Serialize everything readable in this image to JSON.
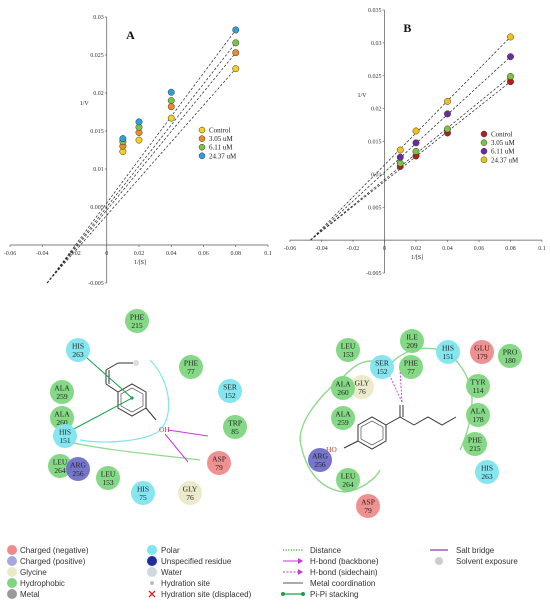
{
  "chart_data": [
    {
      "type": "line",
      "panel_label": "A",
      "ylabel": "1/V",
      "xlabel": "1/[S]",
      "xlim": [
        -0.06,
        0.1
      ],
      "ylim": [
        -0.005,
        0.03
      ],
      "x_ticks": [
        "-0.06",
        "-0.04",
        "-0.02",
        "0",
        "0.02",
        "0.04",
        "0.06",
        "0.08",
        "0.1"
      ],
      "y_ticks": [
        "0.03",
        "0.025",
        "0.02",
        "0.015",
        "0.01",
        "0.005",
        "-0.005"
      ],
      "legend_position": "right",
      "series": [
        {
          "name": "Control",
          "color": "#f2d21b",
          "x": [
            0.01,
            0.02,
            0.04,
            0.08
          ],
          "y": [
            0.0123,
            0.0138,
            0.0167,
            0.0232
          ]
        },
        {
          "name": "3.05 uM",
          "color": "#f08a24",
          "x": [
            0.01,
            0.02,
            0.04,
            0.08
          ],
          "y": [
            0.013,
            0.0148,
            0.0182,
            0.0253
          ]
        },
        {
          "name": "6.11 uM",
          "color": "#7cc243",
          "x": [
            0.01,
            0.02,
            0.04,
            0.08
          ],
          "y": [
            0.0136,
            0.0155,
            0.019,
            0.0266
          ]
        },
        {
          "name": "24.37 uM",
          "color": "#2b9fe0",
          "x": [
            0.01,
            0.02,
            0.04,
            0.08
          ],
          "y": [
            0.014,
            0.0162,
            0.0201,
            0.0283
          ]
        }
      ],
      "fit_lines": {
        "x_start": -0.037,
        "y_start": -0.005
      }
    },
    {
      "type": "line",
      "panel_label": "B",
      "ylabel": "1/V",
      "xlabel": "1/[S]",
      "xlim": [
        -0.06,
        0.1
      ],
      "ylim": [
        -0.005,
        0.035
      ],
      "x_ticks": [
        "-0.06",
        "-0.04",
        "-0.02",
        "0",
        "0.02",
        "0.04",
        "0.06",
        "0.08",
        "0.1"
      ],
      "y_ticks": [
        "0.035",
        "0.03",
        "0.025",
        "0.02",
        "0.015",
        "0.01",
        "0.005",
        "-0.005"
      ],
      "legend_position": "right",
      "series": [
        {
          "name": "Control",
          "color": "#b51d1d",
          "x": [
            0.01,
            0.02,
            0.04,
            0.08
          ],
          "y": [
            0.0112,
            0.0128,
            0.0163,
            0.0241
          ]
        },
        {
          "name": "3.05 uM",
          "color": "#7cc243",
          "x": [
            0.01,
            0.02,
            0.04,
            0.08
          ],
          "y": [
            0.0117,
            0.0135,
            0.0169,
            0.0249
          ]
        },
        {
          "name": "6.11 uM",
          "color": "#6a2aa0",
          "x": [
            0.01,
            0.02,
            0.04,
            0.08
          ],
          "y": [
            0.0126,
            0.0148,
            0.0192,
            0.0279
          ]
        },
        {
          "name": "24.37 uM",
          "color": "#f2c21b",
          "x": [
            0.01,
            0.02,
            0.04,
            0.08
          ],
          "y": [
            0.0137,
            0.0166,
            0.0211,
            0.0309
          ]
        }
      ],
      "fit_lines": {
        "x_start": -0.047,
        "y_start": 0.0
      }
    }
  ],
  "interaction_diagrams": {
    "left": {
      "residues": [
        {
          "name": "PHE",
          "num": "215",
          "color": "#7ed67e"
        },
        {
          "name": "HIS",
          "num": "263",
          "color": "#7fe5ef"
        },
        {
          "name": "PHE",
          "num": "77",
          "color": "#7ed67e"
        },
        {
          "name": "SER",
          "num": "152",
          "color": "#7fe5ef"
        },
        {
          "name": "ALA",
          "num": "259",
          "color": "#7ed67e"
        },
        {
          "name": "ALA",
          "num": "260",
          "color": "#7ed67e"
        },
        {
          "name": "HIS",
          "num": "151",
          "color": "#7fe5ef"
        },
        {
          "name": "TRP",
          "num": "85",
          "color": "#7ed67e"
        },
        {
          "name": "LEU",
          "num": "264",
          "color": "#7ed67e"
        },
        {
          "name": "ARG",
          "num": "256",
          "color": "#6f6fc9"
        },
        {
          "name": "ASP",
          "num": "79",
          "color": "#f08a8a"
        },
        {
          "name": "LEU",
          "num": "153",
          "color": "#7ed67e"
        },
        {
          "name": "HIS",
          "num": "75",
          "color": "#7fe5ef"
        },
        {
          "name": "GLY",
          "num": "76",
          "color": "#ece9c9"
        }
      ],
      "ligand_label": "OH"
    },
    "right": {
      "residues": [
        {
          "name": "LEU",
          "num": "153",
          "color": "#7ed67e"
        },
        {
          "name": "ILE",
          "num": "209",
          "color": "#7ed67e"
        },
        {
          "name": "SER",
          "num": "152",
          "color": "#7fe5ef"
        },
        {
          "name": "PHE",
          "num": "77",
          "color": "#7ed67e"
        },
        {
          "name": "HIS",
          "num": "151",
          "color": "#7fe5ef"
        },
        {
          "name": "GLU",
          "num": "179",
          "color": "#f08a8a"
        },
        {
          "name": "PRO",
          "num": "180",
          "color": "#7ed67e"
        },
        {
          "name": "GLY",
          "num": "76",
          "color": "#ece9c9"
        },
        {
          "name": "ALA",
          "num": "260",
          "color": "#7ed67e"
        },
        {
          "name": "TYR",
          "num": "114",
          "color": "#7ed67e"
        },
        {
          "name": "ALA",
          "num": "259",
          "color": "#7ed67e"
        },
        {
          "name": "ALA",
          "num": "178",
          "color": "#7ed67e"
        },
        {
          "name": "ARG",
          "num": "256",
          "color": "#6f6fc9"
        },
        {
          "name": "PHE",
          "num": "215",
          "color": "#7ed67e"
        },
        {
          "name": "HIS",
          "num": "263",
          "color": "#7fe5ef"
        },
        {
          "name": "LEU",
          "num": "264",
          "color": "#7ed67e"
        },
        {
          "name": "ASP",
          "num": "79",
          "color": "#f08a8a"
        }
      ],
      "ligand_label": "HO"
    }
  },
  "legend_key": {
    "col1": [
      {
        "label": "Charged (negative)",
        "color": "#f08a8a"
      },
      {
        "label": "Charged (positive)",
        "color": "#a7a7e0"
      },
      {
        "label": "Glycine",
        "color": "#ece9c9"
      },
      {
        "label": "Hydrophobic",
        "color": "#7ed67e"
      },
      {
        "label": "Metal",
        "color": "#9a9a9a"
      }
    ],
    "col2": [
      {
        "label": "Polar",
        "color": "#7fe5ef",
        "marker": "circle"
      },
      {
        "label": "Unspecified residue",
        "color": "#1d2f9a",
        "marker": "circle"
      },
      {
        "label": "Water",
        "color": "#cfd8dd",
        "marker": "circle"
      },
      {
        "label": "Hydration site",
        "color": "#bbbbbb",
        "marker": "dot"
      },
      {
        "label": "Hydration site (displaced)",
        "color": "#d22",
        "marker": "cross"
      }
    ],
    "col3": [
      {
        "label": "Distance",
        "color": "#2db62d",
        "style": "dotted"
      },
      {
        "label": "H-bond (backbone)",
        "color": "#c43bd6",
        "style": "arrow"
      },
      {
        "label": "H-bond (sidechain)",
        "color": "#c43bd6",
        "style": "arrow-dash"
      },
      {
        "label": "Metal coordination",
        "color": "#555555",
        "style": "line"
      },
      {
        "label": "Pi-Pi stacking",
        "color": "#17a24a",
        "style": "dots"
      }
    ],
    "col4": [
      {
        "label": "Salt bridge",
        "color": "#8a3fb0",
        "style": "line"
      },
      {
        "label": "Solvent exposure",
        "color": "#cccccc",
        "style": "circle"
      }
    ]
  }
}
